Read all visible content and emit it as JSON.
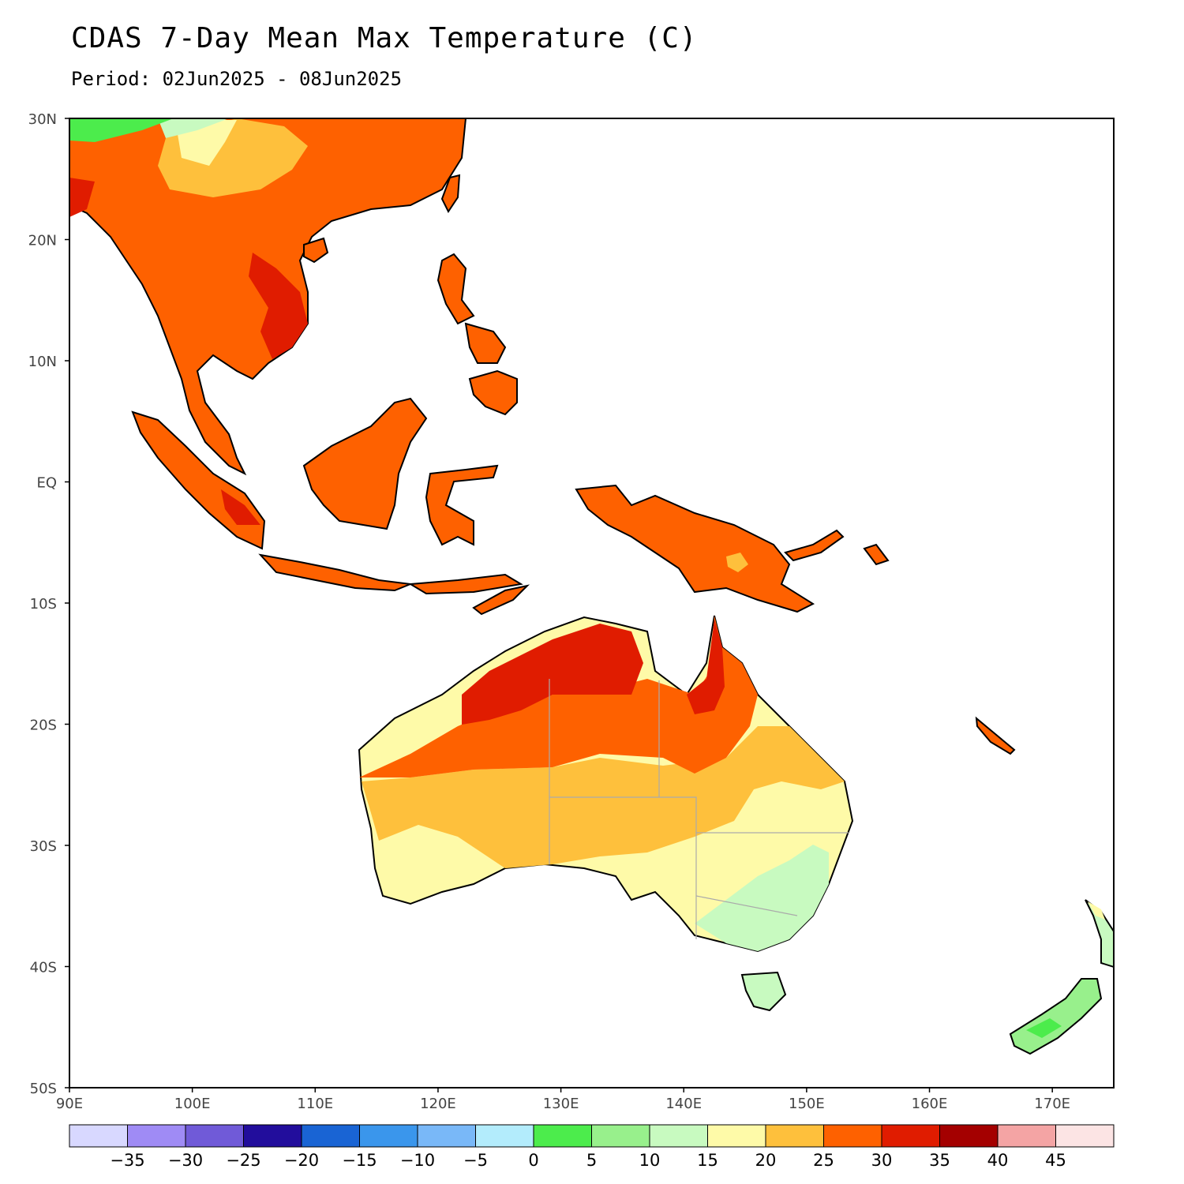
{
  "title": "CDAS 7-Day Mean Max Temperature (C)",
  "subtitle": "Period: 02Jun2025 - 08Jun2025",
  "map": {
    "lon_range": [
      90,
      175
    ],
    "lat_range": [
      -50,
      30
    ],
    "lat_ticks": [
      "30N",
      "20N",
      "10N",
      "EQ",
      "10S",
      "20S",
      "30S",
      "40S",
      "50S"
    ],
    "lon_ticks": [
      "90E",
      "100E",
      "110E",
      "120E",
      "130E",
      "140E",
      "150E",
      "160E",
      "170E"
    ]
  },
  "colorbar": {
    "colors": [
      "#d8d8ff",
      "#9f8bf5",
      "#705ad8",
      "#220d9c",
      "#1964d4",
      "#3a96ec",
      "#79b8f8",
      "#b3ecfc",
      "#4cec4c",
      "#98f08c",
      "#c8fac0",
      "#fefaa8",
      "#fec03c",
      "#fe6100",
      "#e01c00",
      "#a40000",
      "#f4a4a4",
      "#fce4e4"
    ],
    "labels": [
      "-35",
      "-30",
      "-25",
      "-20",
      "-15",
      "-10",
      "-5",
      "0",
      "5",
      "10",
      "15",
      "20",
      "25",
      "30",
      "35",
      "40",
      "45"
    ]
  }
}
